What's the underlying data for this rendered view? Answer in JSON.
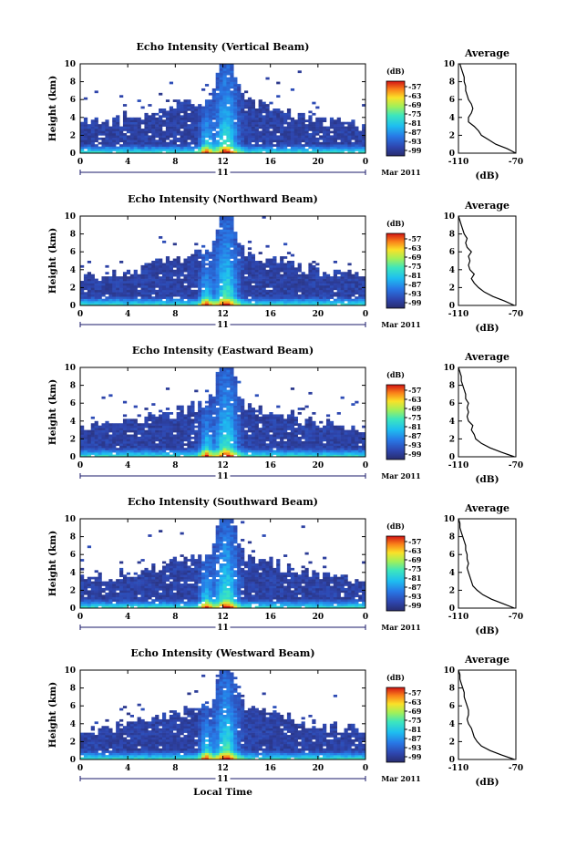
{
  "chart_data": [
    {
      "type": "heatmap",
      "title": "Echo Intensity (Vertical Beam)",
      "ylabel": "Height (km)",
      "xlim": [
        0,
        24
      ],
      "ylim": [
        0,
        10
      ],
      "x_ticks": [
        "0",
        "4",
        "8",
        "12",
        "16",
        "20",
        "0"
      ],
      "y_ticks": [
        "0",
        "2",
        "4",
        "6",
        "8",
        "10"
      ],
      "date_label": "11",
      "month_label": "Mar 2011",
      "colorbar": {
        "unit": "(dB)",
        "ticks": [
          "-57",
          "-63",
          "-69",
          "-75",
          "-81",
          "-87",
          "-93",
          "-99"
        ]
      },
      "profile": {
        "title": "Average",
        "xlabel": "(dB)",
        "xlim": [
          -110,
          -70
        ],
        "x_ticks": [
          "-110",
          "-70"
        ],
        "height_km": [
          0,
          0.5,
          1,
          1.5,
          2,
          2.5,
          3,
          3.5,
          4,
          4.5,
          5,
          5.5,
          6,
          6.5,
          7,
          7.5,
          8,
          8.5,
          9,
          9.5,
          10
        ],
        "values_db": [
          -70,
          -76,
          -84,
          -89,
          -94,
          -96,
          -99,
          -103,
          -103,
          -101,
          -100,
          -101,
          -103,
          -104,
          -105,
          -105,
          -106,
          -106,
          -107,
          -108,
          -109
        ]
      }
    },
    {
      "type": "heatmap",
      "title": "Echo Intensity (Northward Beam)",
      "ylabel": "Height (km)",
      "xlim": [
        0,
        24
      ],
      "ylim": [
        0,
        10
      ],
      "x_ticks": [
        "0",
        "4",
        "8",
        "12",
        "16",
        "20",
        "0"
      ],
      "y_ticks": [
        "0",
        "2",
        "4",
        "6",
        "8",
        "10"
      ],
      "date_label": "11",
      "month_label": "Mar 2011",
      "colorbar": {
        "unit": "(dB)",
        "ticks": [
          "-57",
          "-63",
          "-69",
          "-75",
          "-81",
          "-87",
          "-93",
          "-99"
        ]
      },
      "profile": {
        "title": "Average",
        "xlabel": "(dB)",
        "xlim": [
          -110,
          -70
        ],
        "x_ticks": [
          "-110",
          "-70"
        ],
        "height_km": [
          0,
          0.5,
          1,
          1.5,
          2,
          2.5,
          3,
          3.5,
          4,
          4.5,
          5,
          5.5,
          6,
          6.5,
          7,
          7.5,
          8,
          8.5,
          9,
          9.5,
          10
        ],
        "values_db": [
          -71,
          -78,
          -86,
          -92,
          -96,
          -99,
          -101,
          -99,
          -102,
          -103,
          -102,
          -103,
          -101,
          -104,
          -105,
          -104,
          -106,
          -107,
          -108,
          -109,
          -110
        ]
      }
    },
    {
      "type": "heatmap",
      "title": "Echo Intensity (Eastward Beam)",
      "ylabel": "Height (km)",
      "xlim": [
        0,
        24
      ],
      "ylim": [
        0,
        10
      ],
      "x_ticks": [
        "0",
        "4",
        "8",
        "12",
        "16",
        "20",
        "0"
      ],
      "y_ticks": [
        "0",
        "2",
        "4",
        "6",
        "8",
        "10"
      ],
      "date_label": "11",
      "month_label": "Mar 2011",
      "colorbar": {
        "unit": "(dB)",
        "ticks": [
          "-57",
          "-63",
          "-69",
          "-75",
          "-81",
          "-87",
          "-93",
          "-99"
        ]
      },
      "profile": {
        "title": "Average",
        "xlabel": "(dB)",
        "xlim": [
          -110,
          -70
        ],
        "x_ticks": [
          "-110",
          "-70"
        ],
        "height_km": [
          0,
          0.5,
          1,
          1.5,
          2,
          2.5,
          3,
          3.5,
          4,
          4.5,
          5,
          5.5,
          6,
          6.5,
          7,
          7.5,
          8,
          8.5,
          9,
          9.5,
          10
        ],
        "values_db": [
          -71,
          -80,
          -88,
          -94,
          -98,
          -99,
          -101,
          -100,
          -103,
          -104,
          -103,
          -104,
          -103,
          -105,
          -105,
          -106,
          -107,
          -108,
          -108,
          -109,
          -110
        ]
      }
    },
    {
      "type": "heatmap",
      "title": "Echo Intensity (Southward Beam)",
      "ylabel": "Height (km)",
      "xlim": [
        0,
        24
      ],
      "ylim": [
        0,
        10
      ],
      "x_ticks": [
        "0",
        "4",
        "8",
        "12",
        "16",
        "20",
        "0"
      ],
      "y_ticks": [
        "0",
        "2",
        "4",
        "6",
        "8",
        "10"
      ],
      "date_label": "11",
      "month_label": "Mar 2011",
      "colorbar": {
        "unit": "(dB)",
        "ticks": [
          "-57",
          "-63",
          "-69",
          "-75",
          "-81",
          "-87",
          "-93",
          "-99"
        ]
      },
      "profile": {
        "title": "Average",
        "xlabel": "(dB)",
        "xlim": [
          -110,
          -70
        ],
        "x_ticks": [
          "-110",
          "-70"
        ],
        "height_km": [
          0,
          0.5,
          1,
          1.5,
          2,
          2.5,
          3,
          3.5,
          4,
          4.5,
          5,
          5.5,
          6,
          6.5,
          7,
          7.5,
          8,
          8.5,
          9,
          9.5,
          10
        ],
        "values_db": [
          -71,
          -79,
          -87,
          -93,
          -97,
          -100,
          -101,
          -102,
          -103,
          -104,
          -103,
          -104,
          -104,
          -105,
          -105,
          -106,
          -107,
          -108,
          -109,
          -109,
          -110
        ]
      }
    },
    {
      "type": "heatmap",
      "title": "Echo Intensity (Westward Beam)",
      "ylabel": "Height (km)",
      "xlabel": "Local Time",
      "xlim": [
        0,
        24
      ],
      "ylim": [
        0,
        10
      ],
      "x_ticks": [
        "0",
        "4",
        "8",
        "12",
        "16",
        "20",
        "0"
      ],
      "y_ticks": [
        "0",
        "2",
        "4",
        "6",
        "8",
        "10"
      ],
      "date_label": "11",
      "month_label": "Mar 2011",
      "colorbar": {
        "unit": "(dB)",
        "ticks": [
          "-57",
          "-63",
          "-69",
          "-75",
          "-81",
          "-87",
          "-93",
          "-99"
        ]
      },
      "profile": {
        "title": "Average",
        "xlabel": "(dB)",
        "xlim": [
          -110,
          -70
        ],
        "x_ticks": [
          "-110",
          "-70"
        ],
        "height_km": [
          0,
          0.5,
          1,
          1.5,
          2,
          2.5,
          3,
          3.5,
          4,
          4.5,
          5,
          5.5,
          6,
          6.5,
          7,
          7.5,
          8,
          8.5,
          9,
          9.5,
          10
        ],
        "values_db": [
          -71,
          -80,
          -88,
          -94,
          -97,
          -99,
          -100,
          -101,
          -103,
          -104,
          -103,
          -103,
          -104,
          -105,
          -106,
          -106,
          -107,
          -108,
          -109,
          -109,
          -110
        ]
      }
    }
  ]
}
